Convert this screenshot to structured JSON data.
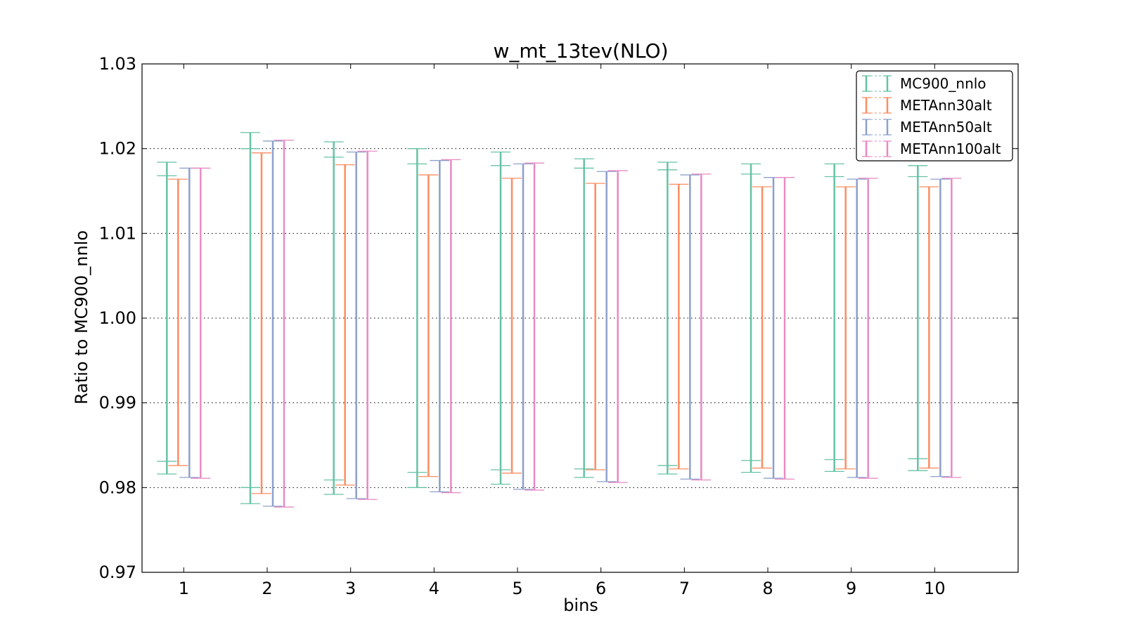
{
  "chart_data": {
    "type": "errorbar",
    "title": "w_mt_13tev(NLO)",
    "xlabel": "bins",
    "ylabel": "Ratio to MC900_nnlo",
    "ylim": [
      0.97,
      1.03
    ],
    "yticks": [
      "0.97",
      "0.98",
      "0.99",
      "1.00",
      "1.01",
      "1.02",
      "1.03"
    ],
    "categories": [
      "1",
      "2",
      "3",
      "4",
      "5",
      "6",
      "7",
      "8",
      "9",
      "10"
    ],
    "grid": "horizontal dotted",
    "legend_position": "top-right",
    "series": [
      {
        "name": "MC900_nnlo",
        "color": "#66c2a5",
        "outer_upper": [
          1.0184,
          1.0219,
          1.0208,
          1.02,
          1.0196,
          1.0188,
          1.0184,
          1.0182,
          1.0182,
          1.018
        ],
        "outer_lower": [
          0.9816,
          0.9781,
          0.9792,
          0.98,
          0.9804,
          0.9812,
          0.9816,
          0.9818,
          0.9819,
          0.982
        ],
        "inner_upper": [
          1.0168,
          1.02,
          1.019,
          1.0182,
          1.018,
          1.0177,
          1.0175,
          1.017,
          1.0167,
          1.0167
        ],
        "inner_lower": [
          0.9831,
          0.98,
          0.9809,
          0.9818,
          0.9821,
          0.9822,
          0.9826,
          0.9832,
          0.9833,
          0.9834
        ]
      },
      {
        "name": "METAnn30alt",
        "color": "#fc8d62",
        "upper": [
          1.0164,
          1.0195,
          1.0181,
          1.0169,
          1.0165,
          1.0159,
          1.0158,
          1.0155,
          1.0155,
          1.0155
        ],
        "lower": [
          0.9826,
          0.9793,
          0.9803,
          0.9813,
          0.9817,
          0.9821,
          0.9822,
          0.9823,
          0.9822,
          0.9823
        ]
      },
      {
        "name": "METAnn50alt",
        "color": "#8da0cb",
        "upper": [
          1.0177,
          1.0209,
          1.0196,
          1.0186,
          1.0182,
          1.0173,
          1.0169,
          1.0166,
          1.0164,
          1.0164
        ],
        "lower": [
          0.9812,
          0.9778,
          0.9787,
          0.9795,
          0.9798,
          0.9807,
          0.981,
          0.9811,
          0.9812,
          0.9813
        ]
      },
      {
        "name": "METAnn100alt",
        "color": "#e78ac3",
        "upper": [
          1.0177,
          1.021,
          1.0197,
          1.0187,
          1.0183,
          1.0174,
          1.017,
          1.0166,
          1.0165,
          1.0165
        ],
        "lower": [
          0.9811,
          0.9777,
          0.9786,
          0.9794,
          0.9797,
          0.9806,
          0.9809,
          0.981,
          0.9811,
          0.9812
        ]
      }
    ]
  }
}
